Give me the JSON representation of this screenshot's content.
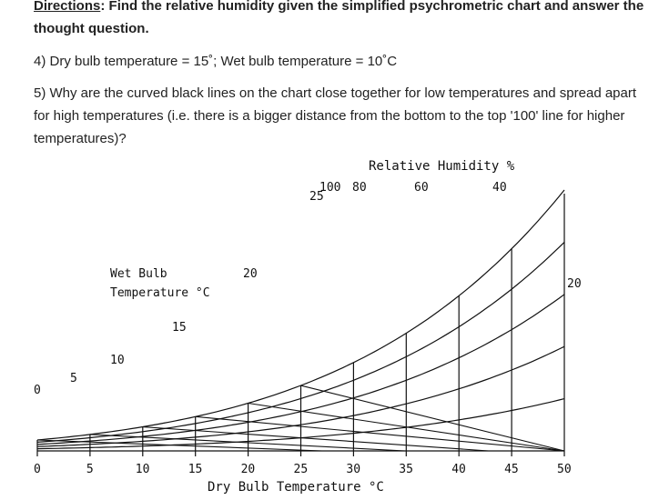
{
  "directions": {
    "label": "Directions",
    "colon": ":",
    "text": "Find the relative humidity given the simplified psychrometric chart and answer the thought question."
  },
  "question4": "4) Dry bulb temperature = 15˚; Wet bulb temperature = 10˚C",
  "question5": "5) Why are the curved black lines on the chart close together for low temperatures and spread apart for high temperatures (i.e. there is a bigger distance from the bottom to the top '100' line for higher temperatures)?",
  "chart_data": {
    "type": "line",
    "xlabel": "Dry Bulb Temperature °C",
    "x_ticks": [
      "0",
      "5",
      "10",
      "15",
      "20",
      "25",
      "30",
      "35",
      "40",
      "45",
      "50"
    ],
    "xlim": [
      0,
      50
    ],
    "rh_title": "Relative Humidity %",
    "rh_labels": [
      "100",
      "80",
      "60",
      "40",
      "20"
    ],
    "wet_bulb_title_line1": "Wet Bulb",
    "wet_bulb_title_line2": "Temperature °C",
    "wet_bulb_labels": [
      "0",
      "5",
      "10",
      "15",
      "20",
      "25"
    ],
    "rh_curves": [
      100,
      80,
      60,
      40,
      20
    ],
    "wet_bulb_lines": [
      0,
      5,
      10,
      15,
      20,
      25
    ]
  }
}
